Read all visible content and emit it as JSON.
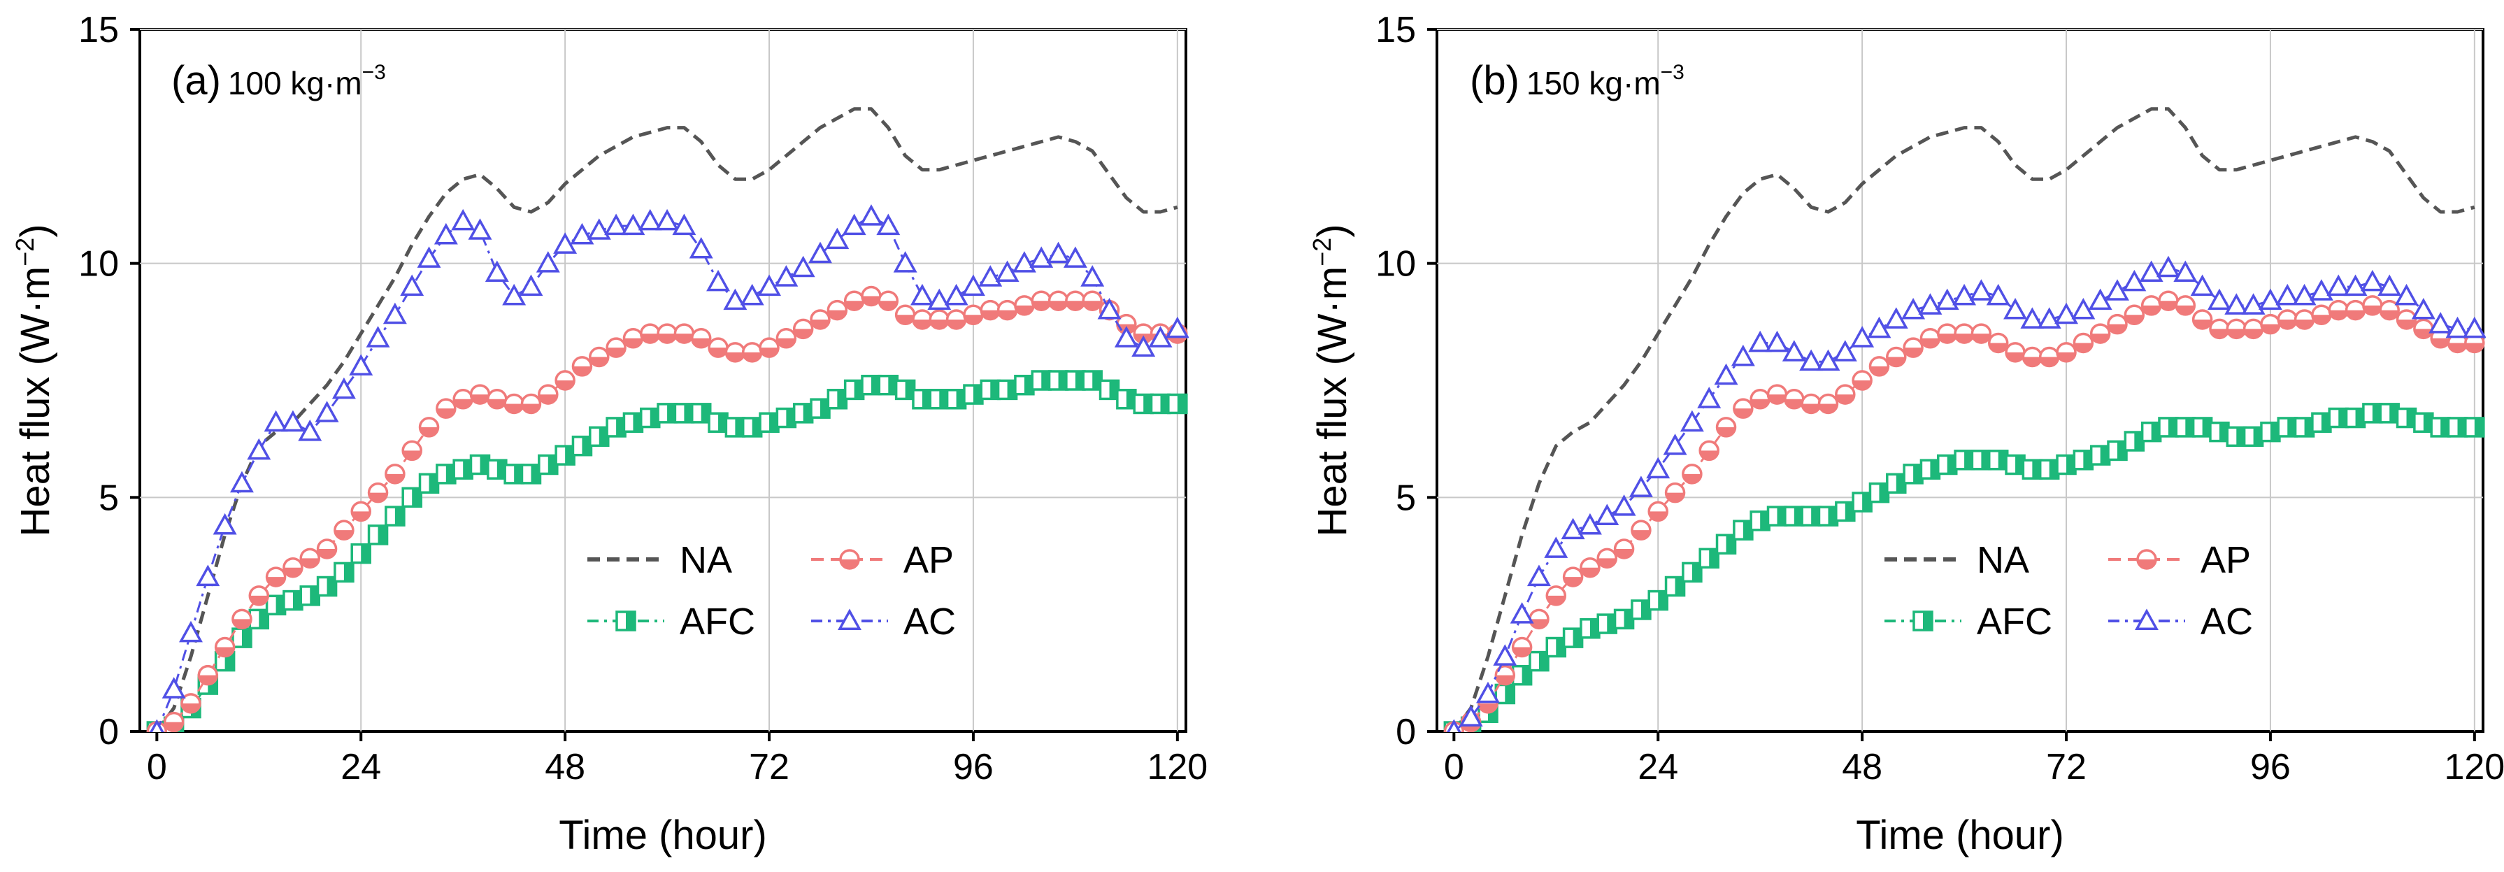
{
  "figure": {
    "panels": [
      {
        "id": "a",
        "tag": "(a)",
        "density": "100 kg·m",
        "density_exp": "−3",
        "xlabel": "Time (hour)",
        "ylabel": "Heat flux (W·m",
        "ylabel_exp": "−2",
        "ylabel_close": ")"
      },
      {
        "id": "b",
        "tag": "(b)",
        "density": "150 kg·m",
        "density_exp": "−3",
        "xlabel": "Time (hour)",
        "ylabel": "Heat flux (W·m",
        "ylabel_exp": "−2",
        "ylabel_close": ")"
      }
    ],
    "legend": {
      "NA": "NA",
      "AP": "AP",
      "AFC": "AFC",
      "AC": "AC"
    }
  },
  "chart_data": [
    {
      "type": "line",
      "title": "(a) 100 kg·m−3",
      "xlabel": "Time (hour)",
      "ylabel": "Heat flux (W·m−2)",
      "xlim": [
        -2,
        121
      ],
      "ylim": [
        0,
        15
      ],
      "xticks": [
        0,
        24,
        48,
        72,
        96,
        120
      ],
      "yticks": [
        0,
        5,
        10,
        15
      ],
      "grid": true,
      "legend_position": "lower-right",
      "colors": {
        "NA": "#555555",
        "AFC": "#1db87a",
        "AP": "#f07a7a",
        "AC": "#5050e6"
      },
      "series": [
        {
          "name": "NA",
          "style": "dashed",
          "x": [
            0,
            2,
            4,
            6,
            8,
            10,
            12,
            14,
            16,
            18,
            20,
            22,
            24,
            26,
            28,
            30,
            32,
            34,
            36,
            38,
            40,
            42,
            44,
            46,
            48,
            50,
            52,
            54,
            56,
            58,
            60,
            62,
            64,
            66,
            68,
            70,
            72,
            74,
            76,
            78,
            80,
            82,
            84,
            86,
            88,
            90,
            92,
            94,
            96,
            98,
            100,
            102,
            104,
            106,
            108,
            110,
            112,
            114,
            116,
            118,
            120
          ],
          "y": [
            0,
            0.5,
            1.6,
            2.9,
            4.2,
            5.3,
            6.1,
            6.4,
            6.6,
            7.0,
            7.4,
            7.9,
            8.5,
            9.1,
            9.7,
            10.4,
            11.0,
            11.5,
            11.8,
            11.9,
            11.6,
            11.2,
            11.1,
            11.3,
            11.7,
            12.0,
            12.3,
            12.5,
            12.7,
            12.8,
            12.9,
            12.9,
            12.6,
            12.1,
            11.8,
            11.8,
            12.0,
            12.3,
            12.6,
            12.9,
            13.1,
            13.3,
            13.3,
            12.9,
            12.3,
            12.0,
            12.0,
            12.1,
            12.2,
            12.3,
            12.4,
            12.5,
            12.6,
            12.7,
            12.6,
            12.4,
            11.9,
            11.4,
            11.1,
            11.1,
            11.2
          ]
        },
        {
          "name": "AFC",
          "style": "dash-dot",
          "marker": "square-half",
          "x": [
            0,
            2,
            4,
            6,
            8,
            10,
            12,
            14,
            16,
            18,
            20,
            22,
            24,
            26,
            28,
            30,
            32,
            34,
            36,
            38,
            40,
            42,
            44,
            46,
            48,
            50,
            52,
            54,
            56,
            58,
            60,
            62,
            64,
            66,
            68,
            70,
            72,
            74,
            76,
            78,
            80,
            82,
            84,
            86,
            88,
            90,
            92,
            94,
            96,
            98,
            100,
            102,
            104,
            106,
            108,
            110,
            112,
            114,
            116,
            118,
            120
          ],
          "y": [
            0,
            0.1,
            0.5,
            1.0,
            1.5,
            2.0,
            2.4,
            2.7,
            2.8,
            2.9,
            3.1,
            3.4,
            3.8,
            4.2,
            4.6,
            5.0,
            5.3,
            5.5,
            5.6,
            5.7,
            5.6,
            5.5,
            5.5,
            5.7,
            5.9,
            6.1,
            6.3,
            6.5,
            6.6,
            6.7,
            6.8,
            6.8,
            6.8,
            6.6,
            6.5,
            6.5,
            6.6,
            6.7,
            6.8,
            6.9,
            7.1,
            7.3,
            7.4,
            7.4,
            7.3,
            7.1,
            7.1,
            7.1,
            7.2,
            7.3,
            7.3,
            7.4,
            7.5,
            7.5,
            7.5,
            7.5,
            7.3,
            7.1,
            7.0,
            7.0,
            7.0
          ]
        },
        {
          "name": "AP",
          "style": "dashed",
          "marker": "circle-half",
          "x": [
            0,
            2,
            4,
            6,
            8,
            10,
            12,
            14,
            16,
            18,
            20,
            22,
            24,
            26,
            28,
            30,
            32,
            34,
            36,
            38,
            40,
            42,
            44,
            46,
            48,
            50,
            52,
            54,
            56,
            58,
            60,
            62,
            64,
            66,
            68,
            70,
            72,
            74,
            76,
            78,
            80,
            82,
            84,
            86,
            88,
            90,
            92,
            94,
            96,
            98,
            100,
            102,
            104,
            106,
            108,
            110,
            112,
            114,
            116,
            118,
            120
          ],
          "y": [
            0,
            0.2,
            0.6,
            1.2,
            1.8,
            2.4,
            2.9,
            3.3,
            3.5,
            3.7,
            3.9,
            4.3,
            4.7,
            5.1,
            5.5,
            6.0,
            6.5,
            6.9,
            7.1,
            7.2,
            7.1,
            7.0,
            7.0,
            7.2,
            7.5,
            7.8,
            8.0,
            8.2,
            8.4,
            8.5,
            8.5,
            8.5,
            8.4,
            8.2,
            8.1,
            8.1,
            8.2,
            8.4,
            8.6,
            8.8,
            9.0,
            9.2,
            9.3,
            9.2,
            8.9,
            8.8,
            8.8,
            8.8,
            8.9,
            9.0,
            9.0,
            9.1,
            9.2,
            9.2,
            9.2,
            9.2,
            9.0,
            8.7,
            8.5,
            8.5,
            8.5
          ]
        },
        {
          "name": "AC",
          "style": "dash-dot",
          "marker": "triangle",
          "x": [
            0,
            2,
            4,
            6,
            8,
            10,
            12,
            14,
            16,
            18,
            20,
            22,
            24,
            26,
            28,
            30,
            32,
            34,
            36,
            38,
            40,
            42,
            44,
            46,
            48,
            50,
            52,
            54,
            56,
            58,
            60,
            62,
            64,
            66,
            68,
            70,
            72,
            74,
            76,
            78,
            80,
            82,
            84,
            86,
            88,
            90,
            92,
            94,
            96,
            98,
            100,
            102,
            104,
            106,
            108,
            110,
            112,
            114,
            116,
            118,
            120
          ],
          "y": [
            0,
            0.9,
            2.1,
            3.3,
            4.4,
            5.3,
            6.0,
            6.6,
            6.6,
            6.4,
            6.8,
            7.3,
            7.8,
            8.4,
            8.9,
            9.5,
            10.1,
            10.6,
            10.9,
            10.7,
            9.8,
            9.3,
            9.5,
            10.0,
            10.4,
            10.6,
            10.7,
            10.8,
            10.8,
            10.9,
            10.9,
            10.8,
            10.3,
            9.6,
            9.2,
            9.3,
            9.5,
            9.7,
            9.9,
            10.2,
            10.5,
            10.8,
            11.0,
            10.8,
            10.0,
            9.3,
            9.2,
            9.3,
            9.5,
            9.7,
            9.8,
            10.0,
            10.1,
            10.2,
            10.1,
            9.7,
            9.0,
            8.4,
            8.2,
            8.4,
            8.6
          ]
        }
      ]
    },
    {
      "type": "line",
      "title": "(b) 150 kg·m−3",
      "xlabel": "Time (hour)",
      "ylabel": "Heat flux (W·m−2)",
      "xlim": [
        -2,
        121
      ],
      "ylim": [
        0,
        15
      ],
      "xticks": [
        0,
        24,
        48,
        72,
        96,
        120
      ],
      "yticks": [
        0,
        5,
        10,
        15
      ],
      "grid": true,
      "legend_position": "lower-right",
      "colors": {
        "NA": "#555555",
        "AFC": "#1db87a",
        "AP": "#f07a7a",
        "AC": "#5050e6"
      },
      "series": [
        {
          "name": "NA",
          "style": "dashed",
          "x": [
            0,
            2,
            4,
            6,
            8,
            10,
            12,
            14,
            16,
            18,
            20,
            22,
            24,
            26,
            28,
            30,
            32,
            34,
            36,
            38,
            40,
            42,
            44,
            46,
            48,
            50,
            52,
            54,
            56,
            58,
            60,
            62,
            64,
            66,
            68,
            70,
            72,
            74,
            76,
            78,
            80,
            82,
            84,
            86,
            88,
            90,
            92,
            94,
            96,
            98,
            100,
            102,
            104,
            106,
            108,
            110,
            112,
            114,
            116,
            118,
            120
          ],
          "y": [
            0,
            0.5,
            1.6,
            2.9,
            4.2,
            5.3,
            6.1,
            6.4,
            6.6,
            7.0,
            7.4,
            7.9,
            8.5,
            9.1,
            9.7,
            10.4,
            11.0,
            11.5,
            11.8,
            11.9,
            11.6,
            11.2,
            11.1,
            11.3,
            11.7,
            12.0,
            12.3,
            12.5,
            12.7,
            12.8,
            12.9,
            12.9,
            12.6,
            12.1,
            11.8,
            11.8,
            12.0,
            12.3,
            12.6,
            12.9,
            13.1,
            13.3,
            13.3,
            12.9,
            12.3,
            12.0,
            12.0,
            12.1,
            12.2,
            12.3,
            12.4,
            12.5,
            12.6,
            12.7,
            12.6,
            12.4,
            11.9,
            11.4,
            11.1,
            11.1,
            11.2
          ]
        },
        {
          "name": "AFC",
          "style": "dash-dot",
          "marker": "square-half",
          "x": [
            0,
            2,
            4,
            6,
            8,
            10,
            12,
            14,
            16,
            18,
            20,
            22,
            24,
            26,
            28,
            30,
            32,
            34,
            36,
            38,
            40,
            42,
            44,
            46,
            48,
            50,
            52,
            54,
            56,
            58,
            60,
            62,
            64,
            66,
            68,
            70,
            72,
            74,
            76,
            78,
            80,
            82,
            84,
            86,
            88,
            90,
            92,
            94,
            96,
            98,
            100,
            102,
            104,
            106,
            108,
            110,
            112,
            114,
            116,
            118,
            120
          ],
          "y": [
            0,
            0.1,
            0.4,
            0.8,
            1.2,
            1.5,
            1.8,
            2.0,
            2.2,
            2.3,
            2.4,
            2.6,
            2.8,
            3.1,
            3.4,
            3.7,
            4.0,
            4.3,
            4.5,
            4.6,
            4.6,
            4.6,
            4.6,
            4.7,
            4.9,
            5.1,
            5.3,
            5.5,
            5.6,
            5.7,
            5.8,
            5.8,
            5.8,
            5.7,
            5.6,
            5.6,
            5.7,
            5.8,
            5.9,
            6.0,
            6.2,
            6.4,
            6.5,
            6.5,
            6.5,
            6.4,
            6.3,
            6.3,
            6.4,
            6.5,
            6.5,
            6.6,
            6.7,
            6.7,
            6.8,
            6.8,
            6.7,
            6.6,
            6.5,
            6.5,
            6.5
          ]
        },
        {
          "name": "AP",
          "style": "dashed",
          "marker": "circle-half",
          "x": [
            0,
            2,
            4,
            6,
            8,
            10,
            12,
            14,
            16,
            18,
            20,
            22,
            24,
            26,
            28,
            30,
            32,
            34,
            36,
            38,
            40,
            42,
            44,
            46,
            48,
            50,
            52,
            54,
            56,
            58,
            60,
            62,
            64,
            66,
            68,
            70,
            72,
            74,
            76,
            78,
            80,
            82,
            84,
            86,
            88,
            90,
            92,
            94,
            96,
            98,
            100,
            102,
            104,
            106,
            108,
            110,
            112,
            114,
            116,
            118,
            120
          ],
          "y": [
            0,
            0.2,
            0.6,
            1.2,
            1.8,
            2.4,
            2.9,
            3.3,
            3.5,
            3.7,
            3.9,
            4.3,
            4.7,
            5.1,
            5.5,
            6.0,
            6.5,
            6.9,
            7.1,
            7.2,
            7.1,
            7.0,
            7.0,
            7.2,
            7.5,
            7.8,
            8.0,
            8.2,
            8.4,
            8.5,
            8.5,
            8.5,
            8.3,
            8.1,
            8.0,
            8.0,
            8.1,
            8.3,
            8.5,
            8.7,
            8.9,
            9.1,
            9.2,
            9.1,
            8.8,
            8.6,
            8.6,
            8.6,
            8.7,
            8.8,
            8.8,
            8.9,
            9.0,
            9.0,
            9.1,
            9.0,
            8.8,
            8.6,
            8.4,
            8.3,
            8.3
          ]
        },
        {
          "name": "AC",
          "style": "dash-dot",
          "marker": "triangle",
          "x": [
            0,
            2,
            4,
            6,
            8,
            10,
            12,
            14,
            16,
            18,
            20,
            22,
            24,
            26,
            28,
            30,
            32,
            34,
            36,
            38,
            40,
            42,
            44,
            46,
            48,
            50,
            52,
            54,
            56,
            58,
            60,
            62,
            64,
            66,
            68,
            70,
            72,
            74,
            76,
            78,
            80,
            82,
            84,
            86,
            88,
            90,
            92,
            94,
            96,
            98,
            100,
            102,
            104,
            106,
            108,
            110,
            112,
            114,
            116,
            118,
            120
          ],
          "y": [
            0,
            0.3,
            0.8,
            1.6,
            2.5,
            3.3,
            3.9,
            4.3,
            4.4,
            4.6,
            4.8,
            5.2,
            5.6,
            6.1,
            6.6,
            7.1,
            7.6,
            8.0,
            8.3,
            8.3,
            8.1,
            7.9,
            7.9,
            8.1,
            8.4,
            8.6,
            8.8,
            9.0,
            9.1,
            9.2,
            9.3,
            9.4,
            9.3,
            9.0,
            8.8,
            8.8,
            8.9,
            9.0,
            9.2,
            9.4,
            9.6,
            9.8,
            9.9,
            9.8,
            9.5,
            9.2,
            9.1,
            9.1,
            9.2,
            9.3,
            9.3,
            9.4,
            9.5,
            9.5,
            9.6,
            9.5,
            9.3,
            9.0,
            8.7,
            8.6,
            8.6
          ]
        }
      ]
    }
  ]
}
